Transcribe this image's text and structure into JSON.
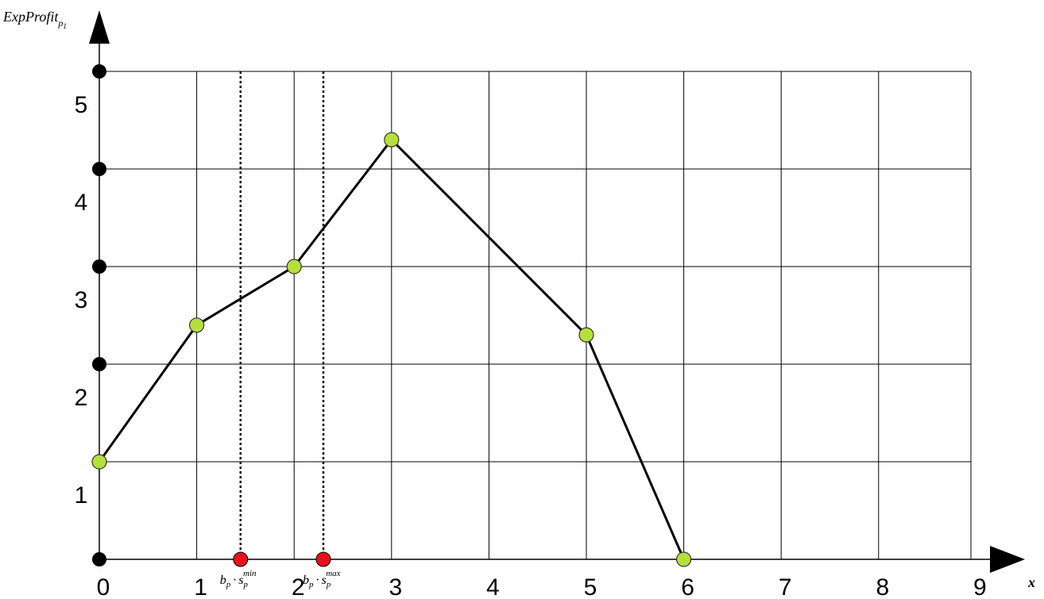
{
  "chart_data": {
    "type": "line",
    "xlabel": {
      "main": "x"
    },
    "ylabel": {
      "main": "ExpProfit",
      "sub": "p",
      "subsub": "1"
    },
    "xlim": [
      0,
      9
    ],
    "ylim": [
      0,
      5
    ],
    "x_ticks": [
      "0",
      "1",
      "2",
      "3",
      "4",
      "5",
      "6",
      "7",
      "8",
      "9"
    ],
    "y_ticks": [
      "1",
      "2",
      "3",
      "4",
      "5"
    ],
    "grid": true,
    "series": [
      {
        "points": [
          {
            "x": 0,
            "y": 1.0
          },
          {
            "x": 1,
            "y": 2.4
          },
          {
            "x": 2,
            "y": 3.0
          },
          {
            "x": 3,
            "y": 4.3
          },
          {
            "x": 5,
            "y": 2.3
          },
          {
            "x": 6,
            "y": 0.0
          }
        ],
        "color": "#000000",
        "marker_color": "#b5e03c"
      }
    ],
    "reference_lines": [
      {
        "x": 1.45,
        "label_base": "b",
        "label_base_sub": "p",
        "label_dot": "·",
        "label_var": "s",
        "label_var_sub": "p",
        "label_sup": "min",
        "color": "#e8121c"
      },
      {
        "x": 2.3,
        "label_base": "b",
        "label_base_sub": "p",
        "label_dot": "·",
        "label_var": "s",
        "label_var_sub": "p",
        "label_sup": "max",
        "color": "#e8121c"
      }
    ],
    "y_axis_dots": [
      0,
      1,
      2,
      3,
      4,
      5
    ]
  }
}
